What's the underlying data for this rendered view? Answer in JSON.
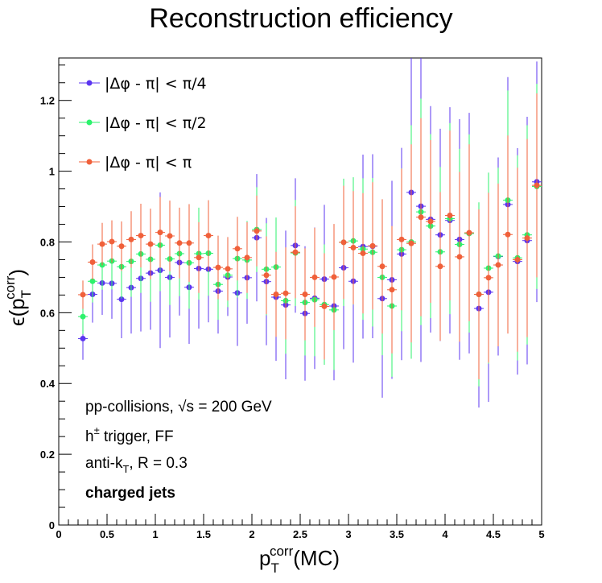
{
  "chart_data": {
    "type": "scatter",
    "title": "Reconstruction efficiency",
    "xlabel": {
      "main": "p",
      "sub": "T",
      "sup": "corr",
      "suffix": "(MC)"
    },
    "ylabel": {
      "prefix": "ϵ(p",
      "sub": "T",
      "sup": "corr",
      "suffix": ")"
    },
    "xlim": [
      0,
      5
    ],
    "ylim": [
      0,
      1.32
    ],
    "x_ticks": [
      "0",
      "0.5",
      "1",
      "1.5",
      "2",
      "2.5",
      "3",
      "3.5",
      "4",
      "4.5",
      "5"
    ],
    "y_ticks": [
      "0",
      "0.2",
      "0.4",
      "0.6",
      "0.8",
      "1",
      "1.2"
    ],
    "x_tick_values": [
      0,
      0.5,
      1,
      1.5,
      2,
      2.5,
      3,
      3.5,
      4,
      4.5,
      5
    ],
    "y_tick_values": [
      0,
      0.2,
      0.4,
      0.6,
      0.8,
      1,
      1.2
    ],
    "grid": false,
    "legend_position": "top-left",
    "x": [
      0.25,
      0.35,
      0.45,
      0.55,
      0.65,
      0.75,
      0.85,
      0.95,
      1.05,
      1.15,
      1.25,
      1.35,
      1.45,
      1.55,
      1.65,
      1.75,
      1.85,
      1.95,
      2.05,
      2.15,
      2.25,
      2.35,
      2.45,
      2.55,
      2.65,
      2.75,
      2.85,
      2.95,
      3.05,
      3.15,
      3.25,
      3.35,
      3.45,
      3.55,
      3.65,
      3.75,
      3.85,
      3.95,
      4.05,
      4.15,
      4.25,
      4.35,
      4.45,
      4.55,
      4.65,
      4.75,
      4.85,
      4.95
    ],
    "series": [
      {
        "name": "|Δφ - π| < π/4",
        "color": "#5b35f0",
        "values": [
          0.527,
          0.652,
          0.684,
          0.683,
          0.638,
          0.671,
          0.697,
          0.712,
          0.72,
          0.7,
          0.742,
          0.672,
          0.725,
          0.723,
          0.661,
          0.701,
          0.656,
          0.699,
          0.812,
          0.688,
          0.644,
          0.622,
          0.79,
          0.598,
          0.641,
          0.695,
          0.619,
          0.727,
          0.689,
          0.787,
          0.788,
          0.64,
          0.693,
          0.766,
          0.94,
          0.901,
          0.864,
          0.82,
          0.861,
          0.807,
          0.825,
          0.612,
          0.658,
          0.759,
          0.906,
          0.745,
          0.804,
          0.97
        ],
        "errors": [
          0.06,
          0.08,
          0.09,
          0.1,
          0.11,
          0.13,
          0.15,
          0.16,
          0.22,
          0.17,
          0.15,
          0.16,
          0.17,
          0.15,
          0.12,
          0.11,
          0.15,
          0.13,
          0.18,
          0.18,
          0.18,
          0.21,
          0.19,
          0.19,
          0.2,
          0.21,
          0.21,
          0.23,
          0.23,
          0.26,
          0.26,
          0.28,
          0.28,
          0.3,
          0.44,
          0.44,
          0.32,
          0.3,
          0.32,
          0.34,
          0.34,
          0.28,
          0.31,
          0.28,
          0.36,
          0.32,
          0.35,
          0.34
        ]
      },
      {
        "name": "|Δφ - π| < π/2",
        "color": "#2cf26c",
        "values": [
          0.589,
          0.689,
          0.735,
          0.746,
          0.73,
          0.745,
          0.766,
          0.751,
          0.791,
          0.752,
          0.767,
          0.741,
          0.767,
          0.768,
          0.68,
          0.706,
          0.753,
          0.749,
          0.835,
          0.723,
          0.729,
          0.634,
          0.769,
          0.629,
          0.637,
          0.623,
          0.608,
          0.799,
          0.803,
          0.78,
          0.771,
          0.7,
          0.619,
          0.778,
          0.8,
          0.885,
          0.845,
          0.772,
          0.866,
          0.793,
          0.824,
          0.652,
          0.726,
          0.76,
          0.918,
          0.755,
          0.82,
          0.957
        ],
        "errors": [
          0.05,
          0.06,
          0.07,
          0.08,
          0.09,
          0.1,
          0.11,
          0.12,
          0.13,
          0.13,
          0.12,
          0.13,
          0.13,
          0.12,
          0.1,
          0.09,
          0.11,
          0.11,
          0.12,
          0.13,
          0.14,
          0.15,
          0.15,
          0.15,
          0.16,
          0.17,
          0.17,
          0.18,
          0.18,
          0.2,
          0.21,
          0.22,
          0.2,
          0.23,
          0.33,
          0.32,
          0.26,
          0.24,
          0.27,
          0.27,
          0.28,
          0.26,
          0.27,
          0.25,
          0.31,
          0.29,
          0.31,
          0.29
        ]
      },
      {
        "name": "|Δφ - π| < π",
        "color": "#f0603a",
        "values": [
          0.651,
          0.743,
          0.794,
          0.801,
          0.788,
          0.807,
          0.818,
          0.794,
          0.827,
          0.817,
          0.797,
          0.797,
          0.756,
          0.818,
          0.728,
          0.724,
          0.781,
          0.756,
          0.831,
          0.706,
          0.652,
          0.655,
          0.771,
          0.652,
          0.7,
          0.618,
          0.701,
          0.799,
          0.784,
          0.768,
          0.789,
          0.731,
          0.665,
          0.807,
          0.796,
          0.87,
          0.858,
          0.731,
          0.875,
          0.758,
          0.826,
          0.652,
          0.699,
          0.735,
          0.821,
          0.75,
          0.811,
          0.96
        ],
        "errors": [
          0.04,
          0.05,
          0.06,
          0.06,
          0.07,
          0.08,
          0.09,
          0.1,
          0.1,
          0.1,
          0.1,
          0.11,
          0.1,
          0.1,
          0.09,
          0.09,
          0.09,
          0.1,
          0.1,
          0.11,
          0.12,
          0.13,
          0.13,
          0.13,
          0.14,
          0.15,
          0.15,
          0.16,
          0.16,
          0.17,
          0.18,
          0.19,
          0.18,
          0.2,
          0.28,
          0.28,
          0.23,
          0.21,
          0.24,
          0.24,
          0.25,
          0.24,
          0.24,
          0.23,
          0.28,
          0.26,
          0.28,
          0.26
        ]
      }
    ],
    "annotations": {
      "line1_prefix": "pp-collisions, ",
      "line1_sqrt": "√s",
      "line1_suffix": " = 200 GeV",
      "line2_prefix": "h",
      "line2_sup": "±",
      "line2_suffix": " trigger, FF",
      "line3_prefix": "anti-k",
      "line3_sub": "T",
      "line3_suffix": ", R = 0.3",
      "line4": "charged jets"
    }
  }
}
